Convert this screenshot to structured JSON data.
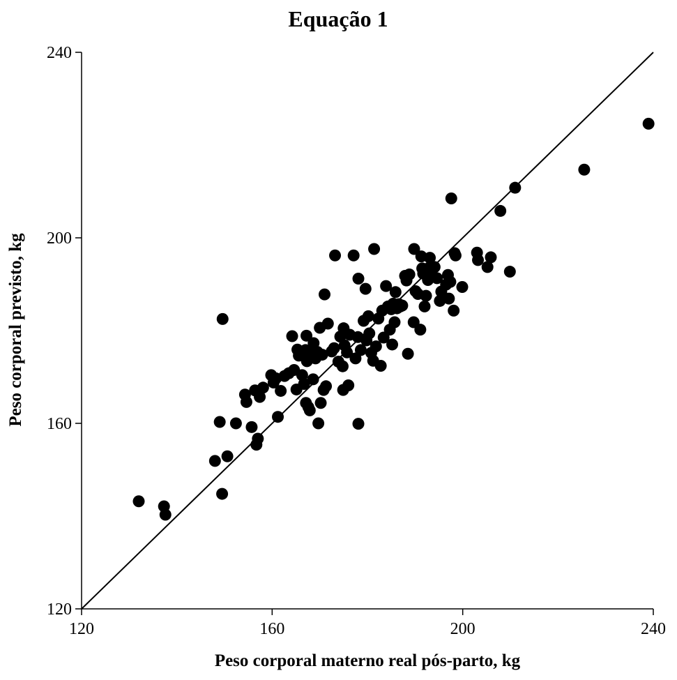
{
  "chart_data": {
    "type": "scatter",
    "title": "Equação 1",
    "xlabel": "Peso corporal materno real pós-parto, kg",
    "ylabel": "Peso corporal previsto, kg",
    "xlim": [
      120,
      240
    ],
    "ylim": [
      120,
      240
    ],
    "x_ticks": [
      "120",
      "160",
      "200",
      "240"
    ],
    "y_ticks": [
      "120",
      "160",
      "200",
      "240"
    ],
    "grid": false,
    "legend": "none",
    "marker_color": "#000000",
    "reference_line": {
      "type": "identity",
      "x": [
        120,
        240
      ],
      "y": [
        120,
        240
      ]
    },
    "series": [
      {
        "points": [
          [
            132,
            143.2
          ],
          [
            137.3,
            142.1
          ],
          [
            137.6,
            140.3
          ],
          [
            148,
            151.9
          ],
          [
            149,
            160.3
          ],
          [
            149.5,
            144.8
          ],
          [
            149.6,
            182.5
          ],
          [
            150.6,
            152.9
          ],
          [
            152.4,
            160
          ],
          [
            154.3,
            166.2
          ],
          [
            154.6,
            164.6
          ],
          [
            155.7,
            159.2
          ],
          [
            156.4,
            167.1
          ],
          [
            156.7,
            155.4
          ],
          [
            157,
            156.7
          ],
          [
            157.4,
            165.7
          ],
          [
            158.1,
            167.7
          ],
          [
            159.8,
            170.4
          ],
          [
            160.3,
            168.8
          ],
          [
            160.8,
            169.7
          ],
          [
            161.2,
            161.4
          ],
          [
            161.8,
            167
          ],
          [
            162.6,
            170.2
          ],
          [
            163.5,
            170.8
          ],
          [
            164.2,
            178.8
          ],
          [
            164.6,
            171.5
          ],
          [
            165.1,
            167.3
          ],
          [
            165.3,
            175.9
          ],
          [
            165.6,
            174.6
          ],
          [
            166.3,
            170.4
          ],
          [
            166.7,
            168.5
          ],
          [
            167,
            175.8
          ],
          [
            167.1,
            164.4
          ],
          [
            167.2,
            178.9
          ],
          [
            167.3,
            173.4
          ],
          [
            167.6,
            163.5
          ],
          [
            167.9,
            162.8
          ],
          [
            168.2,
            175
          ],
          [
            168.6,
            169.5
          ],
          [
            168.7,
            177.3
          ],
          [
            169.1,
            174
          ],
          [
            169.5,
            175.4
          ],
          [
            169.7,
            160
          ],
          [
            170,
            180.6
          ],
          [
            170.2,
            164.4
          ],
          [
            170.5,
            174.8
          ],
          [
            170.8,
            167.2
          ],
          [
            171,
            187.8
          ],
          [
            171.3,
            168
          ],
          [
            171.7,
            181.5
          ],
          [
            172.5,
            175.5
          ],
          [
            173,
            176.2
          ],
          [
            173.2,
            196.2
          ],
          [
            173.9,
            173.3
          ],
          [
            174.3,
            178.7
          ],
          [
            174.8,
            172.3
          ],
          [
            174.9,
            167.2
          ],
          [
            175,
            180.5
          ],
          [
            175.2,
            176.8
          ],
          [
            175.7,
            175.3
          ],
          [
            176,
            168.2
          ],
          [
            176.3,
            179.1
          ],
          [
            177.1,
            196.2
          ],
          [
            177.5,
            174
          ],
          [
            178,
            178.6
          ],
          [
            178.1,
            191.2
          ],
          [
            178.1,
            159.9
          ],
          [
            178.6,
            175.8
          ],
          [
            179.2,
            182.1
          ],
          [
            179.6,
            189
          ],
          [
            179.8,
            177.9
          ],
          [
            180.2,
            183.1
          ],
          [
            180.4,
            179.4
          ],
          [
            180.8,
            175.2
          ],
          [
            181.2,
            173.5
          ],
          [
            181.4,
            197.6
          ],
          [
            181.8,
            176.6
          ],
          [
            182.3,
            182.6
          ],
          [
            182.8,
            172.4
          ],
          [
            183.1,
            184.3
          ],
          [
            183.4,
            178.5
          ],
          [
            183.9,
            189.6
          ],
          [
            184.3,
            185.2
          ],
          [
            184.7,
            180.2
          ],
          [
            185,
            184.6
          ],
          [
            185.2,
            177
          ],
          [
            185.4,
            185.8
          ],
          [
            185.7,
            181.8
          ],
          [
            185.9,
            188.3
          ],
          [
            186.2,
            184.8
          ],
          [
            186.6,
            185.7
          ],
          [
            186.9,
            185.2
          ],
          [
            187.3,
            185.4
          ],
          [
            187.9,
            191.8
          ],
          [
            188.2,
            190.8
          ],
          [
            188.5,
            175
          ],
          [
            188.8,
            192.1
          ],
          [
            189.7,
            181.8
          ],
          [
            189.8,
            197.6
          ],
          [
            190.1,
            188.5
          ],
          [
            190.6,
            187.9
          ],
          [
            191.1,
            180.2
          ],
          [
            191.3,
            196
          ],
          [
            191.5,
            193.4
          ],
          [
            191.7,
            192.3
          ],
          [
            192,
            185.2
          ],
          [
            192.3,
            187.5
          ],
          [
            192.7,
            190.9
          ],
          [
            192.9,
            193.5
          ],
          [
            193.1,
            195.7
          ],
          [
            193.3,
            192.6
          ],
          [
            193.7,
            191.7
          ],
          [
            194.1,
            193.7
          ],
          [
            194.6,
            191.3
          ],
          [
            195.2,
            186.4
          ],
          [
            195.5,
            188.4
          ],
          [
            195.8,
            187.2
          ],
          [
            196.5,
            189.9
          ],
          [
            196.9,
            192
          ],
          [
            197.1,
            186.9
          ],
          [
            197.4,
            190.5
          ],
          [
            197.6,
            208.5
          ],
          [
            198.1,
            184.3
          ],
          [
            198.3,
            196.7
          ],
          [
            198.5,
            196.2
          ],
          [
            199.9,
            189.4
          ],
          [
            203,
            196.8
          ],
          [
            203.2,
            195.2
          ],
          [
            205.2,
            193.7
          ],
          [
            205.9,
            195.8
          ],
          [
            207.9,
            205.8
          ],
          [
            209.9,
            192.7
          ],
          [
            211,
            210.8
          ],
          [
            225.5,
            214.7
          ],
          [
            239,
            224.6
          ]
        ]
      }
    ]
  }
}
